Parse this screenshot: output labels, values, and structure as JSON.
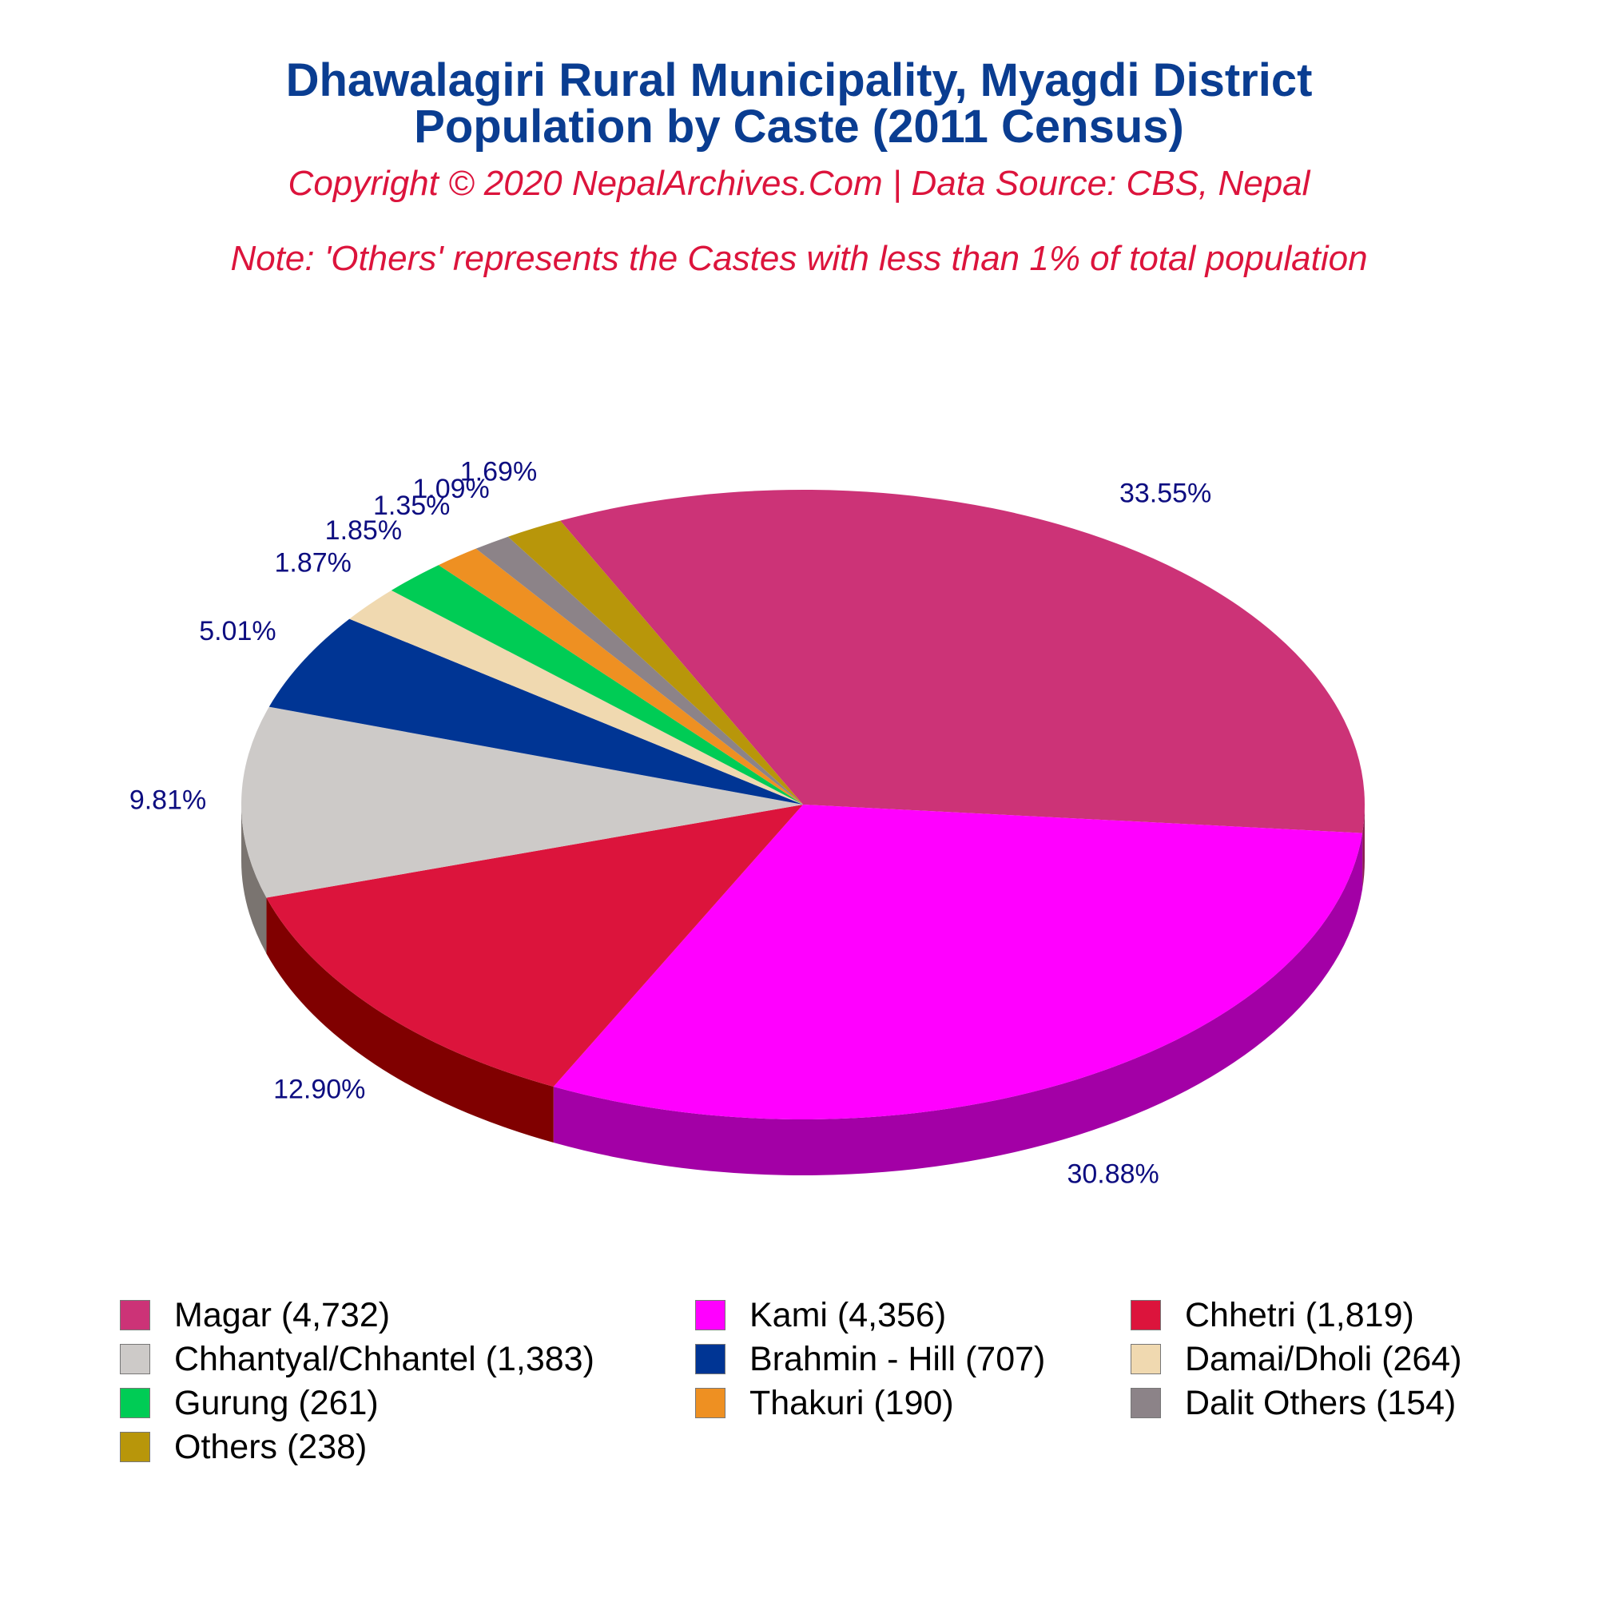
{
  "header": {
    "title_line1": "Dhawalagiri Rural Municipality, Myagdi District",
    "title_line2": "Population by Caste (2011 Census)",
    "copyright": "Copyright © 2020 NepalArchives.Com | Data Source: CBS, Nepal",
    "note": "Note: 'Others' represents the Castes with less than 1% of total population"
  },
  "chart_data": {
    "type": "pie",
    "style": "3d",
    "title": "Dhawalagiri Rural Municipality, Myagdi District Population by Caste (2011 Census)",
    "categories": [
      "Magar",
      "Kami",
      "Chhetri",
      "Chhantyal/Chhantel",
      "Brahmin - Hill",
      "Damai/Dholi",
      "Gurung",
      "Thakuri",
      "Dalit Others",
      "Others"
    ],
    "values": [
      4732,
      4356,
      1819,
      1383,
      707,
      264,
      261,
      190,
      154,
      238
    ],
    "percent_labels": [
      "33.55%",
      "30.88%",
      "12.90%",
      "9.81%",
      "5.01%",
      "1.87%",
      "1.85%",
      "1.35%",
      "1.09%",
      "1.69%"
    ],
    "legend_labels": [
      "Magar (4,732)",
      "Kami (4,356)",
      "Chhetri (1,819)",
      "Chhantyal/Chhantel (1,383)",
      "Brahmin - Hill (707)",
      "Damai/Dholi (264)",
      "Gurung (261)",
      "Thakuri (190)",
      "Dalit Others (154)",
      "Others (238)"
    ],
    "colors": [
      "#cc3377",
      "#ff00ff",
      "#dc143c",
      "#cdcac8",
      "#003594",
      "#f0d9b0",
      "#00cc55",
      "#ee9022",
      "#8c8388",
      "#b8960a"
    ],
    "side_colors": [
      "#8a1f50",
      "#a300a6",
      "#800000",
      "#7a7470",
      "#000050",
      "#a89a7a",
      "#008833",
      "#a05e10",
      "#5a5358",
      "#7a6205"
    ],
    "label_color": "#0d0d80",
    "legend_position": "bottom"
  }
}
